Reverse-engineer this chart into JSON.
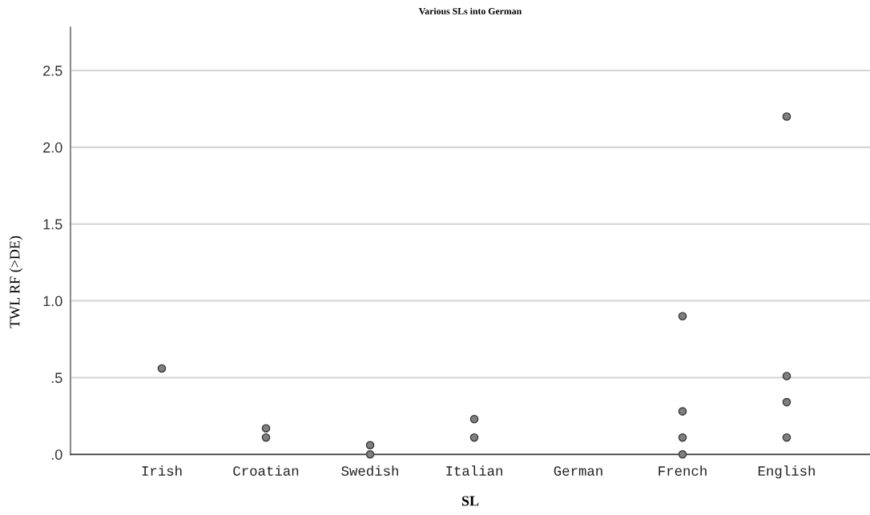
{
  "chart_data": {
    "type": "scatter",
    "title": "Various SLs into German",
    "xlabel": "SL",
    "ylabel": "TWL RF (>DE)",
    "categories": [
      "Irish",
      "Croatian",
      "Swedish",
      "Italian",
      "German",
      "French",
      "English"
    ],
    "series": [
      {
        "color": "#808080",
        "x": [
          "Irish",
          "Croatian",
          "Croatian",
          "Swedish",
          "Swedish",
          "Italian",
          "Italian",
          "French",
          "French",
          "French",
          "French",
          "English",
          "English",
          "English",
          "English"
        ],
        "values": [
          0.56,
          0.17,
          0.11,
          0.06,
          0.0,
          0.23,
          0.11,
          0.9,
          0.28,
          0.11,
          0.0,
          2.2,
          0.51,
          0.34,
          0.11
        ]
      }
    ],
    "ylim": [
      0,
      2.78
    ],
    "yticks": [
      {
        "value": 0,
        "label": ".0"
      },
      {
        "value": 0.5,
        "label": ".5"
      },
      {
        "value": 1,
        "label": "1.0"
      },
      1.5,
      {
        "value": 2,
        "label": "2.0"
      },
      2.5
    ],
    "grid": "y",
    "marker": "circle"
  }
}
